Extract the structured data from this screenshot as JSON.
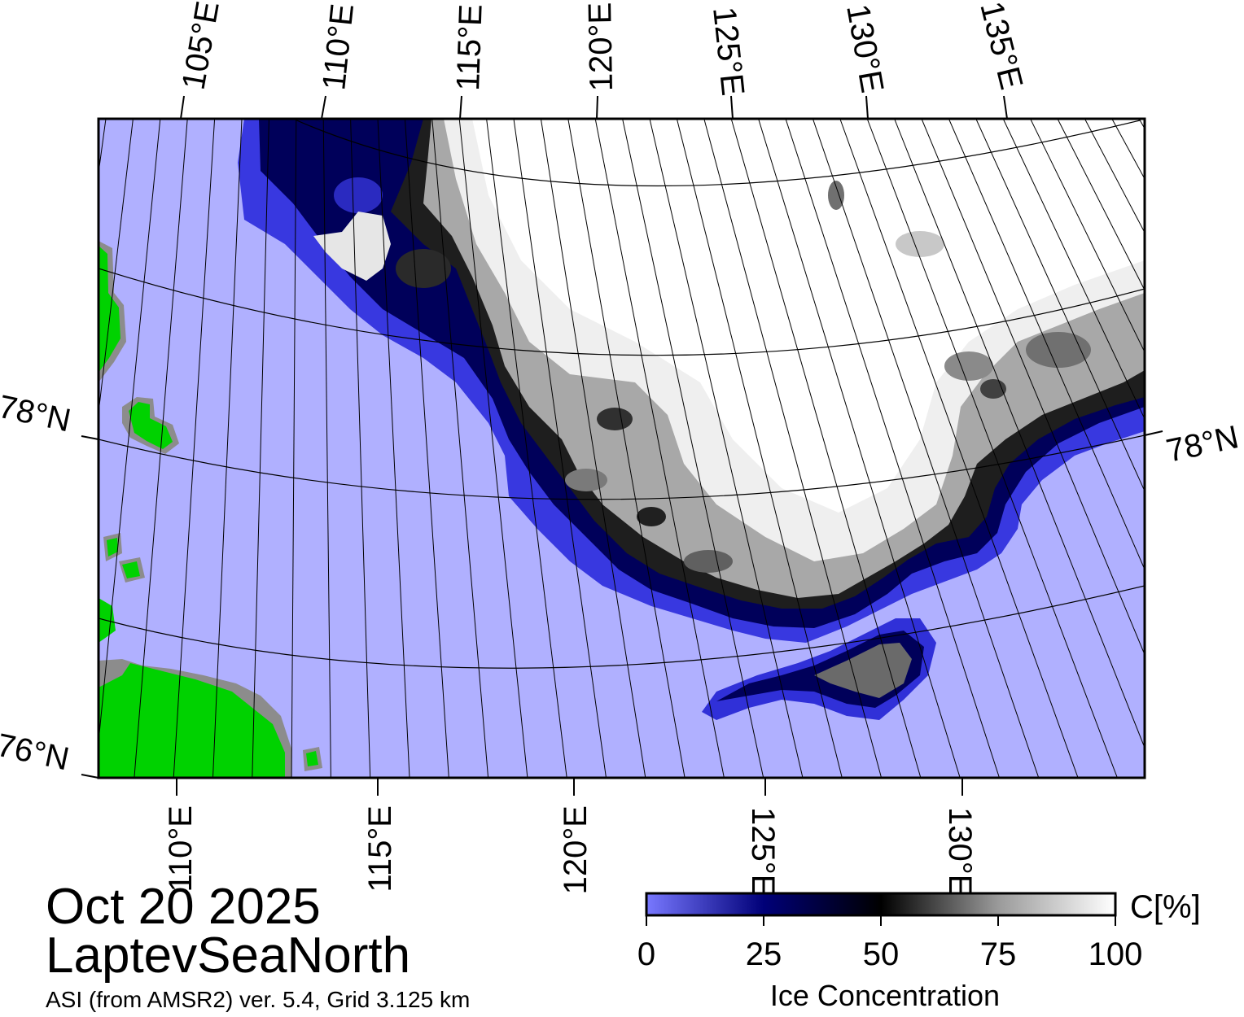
{
  "title": {
    "date": "Oct 20 2025",
    "region": "LaptevSeaNorth",
    "source": "ASI (from AMSR2) ver. 5.4,  Grid 3.125 km"
  },
  "map": {
    "projection": "polar stereographic",
    "top_longitude_labels": [
      "105°E",
      "110°E",
      "115°E",
      "120°E",
      "125°E",
      "130°E",
      "135°E"
    ],
    "bottom_longitude_labels": [
      "110°E",
      "115°E",
      "120°E",
      "125°E",
      "130°E"
    ],
    "left_latitude_labels": [
      "78°N",
      "76°N"
    ],
    "right_latitude_labels": [
      "78°N"
    ],
    "colors": {
      "open_water": "#b0b0ff",
      "land": "#00d200",
      "coast_mask": "#8c8c8c",
      "ice_full": "#ffffff",
      "ice_mid": "#000000",
      "ice_low": "#00007a",
      "graticule": "#000000"
    }
  },
  "colorbar": {
    "label": "Ice Concentration",
    "unit": "C[%]",
    "ticks": [
      "0",
      "25",
      "50",
      "75",
      "100"
    ],
    "range": [
      0,
      100
    ],
    "stops": [
      {
        "value": 0,
        "color": "#7878ff"
      },
      {
        "value": 25,
        "color": "#000078"
      },
      {
        "value": 50,
        "color": "#000000"
      },
      {
        "value": 75,
        "color": "#9a9a9a"
      },
      {
        "value": 100,
        "color": "#ffffff"
      }
    ]
  }
}
